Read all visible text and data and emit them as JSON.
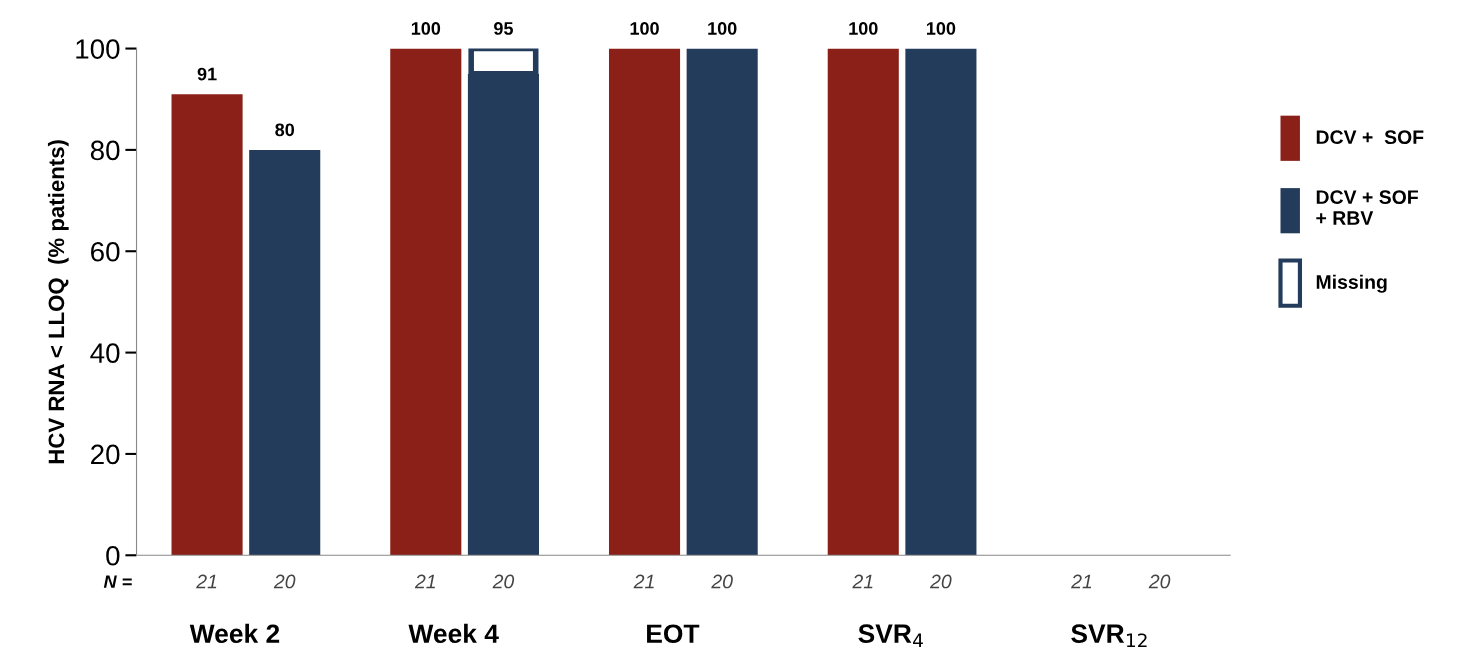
{
  "chart_data": {
    "type": "bar",
    "categories": [
      "Week 2",
      "Week 4",
      "EOT",
      "SVR$_{4}$",
      "SVR$_{12}$"
    ],
    "ylabel": "HCV RNA < LLOQ  (% patients)",
    "ylim": [
      0,
      100
    ],
    "yticks": [
      0,
      20,
      40,
      60,
      80,
      100
    ],
    "grid": false,
    "legend": "right",
    "series": [
      {
        "name": "DCV +  SOF",
        "color": "#8b2019",
        "values": [
          91,
          100,
          100,
          100,
          null
        ],
        "value_labels": [
          "91",
          "100",
          "100",
          "100",
          null
        ]
      },
      {
        "name": "DCV + SOF\n+ RBV",
        "color": "#243c5c",
        "values": [
          80,
          95,
          100,
          100,
          null
        ],
        "value_labels": [
          "80",
          "95",
          "100",
          "100",
          null
        ]
      },
      {
        "name": "Missing",
        "color": "#ffffff",
        "values": [
          null,
          5,
          null,
          null,
          null
        ],
        "base": [
          null,
          95,
          null,
          null,
          null
        ]
      }
    ],
    "annotations": [
      "N =",
      "21",
      "20",
      "21",
      "20",
      "21",
      "20",
      "21",
      "20",
      "21",
      "20"
    ]
  }
}
